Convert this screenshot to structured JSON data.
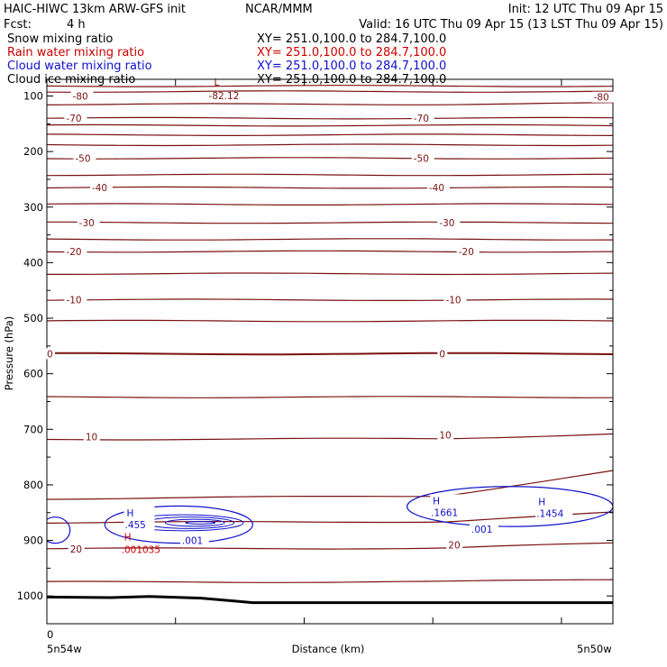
{
  "header": {
    "title_left": "HAIC-HIWC 13km ARW-GFS init",
    "title_center": "NCAR/MMM",
    "init": "Init: 12 UTC Thu 09 Apr 15",
    "fcst_label": "Fcst:",
    "fcst_value": "4 h",
    "valid": "Valid: 16 UTC Thu 09 Apr 15 (13 LST Thu 09 Apr 15)"
  },
  "fields": [
    {
      "name": "Snow mixing ratio",
      "xy": "XY= 251.0,100.0 to 284.7,100.0",
      "color": "#000000"
    },
    {
      "name": "Rain water mixing ratio",
      "xy": "XY= 251.0,100.0 to 284.7,100.0",
      "color": "#cc0000"
    },
    {
      "name": "Cloud water mixing ratio",
      "xy": "XY= 251.0,100.0 to 284.7,100.0",
      "color": "#1010cc"
    },
    {
      "name": "Cloud ice mixing ratio",
      "xy": "XY= 251.0,100.0 to 284.7,100.0",
      "color": "#000000"
    }
  ],
  "chart_data": {
    "type": "contour_cross_section",
    "ylabel": "Pressure (hPa)",
    "xlabel": "Distance (km)",
    "x_tick_label": "0",
    "x_left_label": "5n54w",
    "x_right_label": "5n50w",
    "ylim": [
      1050,
      70
    ],
    "y_ticks": [
      100,
      200,
      300,
      400,
      500,
      600,
      700,
      800,
      900,
      1000
    ],
    "xlim": [
      0,
      440
    ],
    "x_ticks": [
      0,
      100,
      200,
      300,
      400
    ],
    "colors": {
      "temperature": "#7a1010",
      "cloud_water": "#1010cc",
      "rain": "#cc0000",
      "ground": "#000000"
    },
    "temperature_isotherms": [
      {
        "p_left": 82,
        "p_right": 82
      },
      {
        "p_left": 92,
        "p_right": 92
      },
      {
        "p_left": 115,
        "p_right": 113
      },
      {
        "p_left": 140,
        "p_right": 140
      },
      {
        "p_left": 153,
        "p_right": 153
      },
      {
        "p_left": 170,
        "p_right": 170
      },
      {
        "p_left": 188,
        "p_right": 188
      },
      {
        "p_left": 212,
        "p_right": 212
      },
      {
        "p_left": 242,
        "p_right": 242
      },
      {
        "p_left": 265,
        "p_right": 265
      },
      {
        "p_left": 295,
        "p_right": 295
      },
      {
        "p_left": 328,
        "p_right": 328
      },
      {
        "p_left": 358,
        "p_right": 358
      },
      {
        "p_left": 380,
        "p_right": 380
      },
      {
        "p_left": 420,
        "p_right": 420
      },
      {
        "p_left": 467,
        "p_right": 467
      },
      {
        "p_left": 505,
        "p_right": 505
      },
      {
        "p_left": 564,
        "p_right": 564
      },
      {
        "p_left": 642,
        "p_right": 642
      },
      {
        "p_left": 718,
        "p_right": 708
      },
      {
        "p_left": 825,
        "p_right": 775
      },
      {
        "p_left": 868,
        "p_right": 850
      },
      {
        "p_left": 915,
        "p_right": 905
      },
      {
        "p_left": 975,
        "p_right": 970
      }
    ],
    "temperature_labels": [
      {
        "text": "-80",
        "x": 20,
        "p": 100
      },
      {
        "text": "-80",
        "x": 425,
        "p": 102
      },
      {
        "text": "-70",
        "x": 15,
        "p": 140
      },
      {
        "text": "-70",
        "x": 285,
        "p": 140
      },
      {
        "text": "-50",
        "x": 22,
        "p": 212
      },
      {
        "text": "-50",
        "x": 285,
        "p": 212
      },
      {
        "text": "-40",
        "x": 35,
        "p": 265
      },
      {
        "text": "-40",
        "x": 297,
        "p": 265
      },
      {
        "text": "-30",
        "x": 25,
        "p": 328
      },
      {
        "text": "-30",
        "x": 305,
        "p": 328
      },
      {
        "text": "-20",
        "x": 15,
        "p": 380
      },
      {
        "text": "-20",
        "x": 320,
        "p": 380
      },
      {
        "text": "-10",
        "x": 15,
        "p": 467
      },
      {
        "text": "-10",
        "x": 310,
        "p": 467
      },
      {
        "text": "0",
        "x": 0,
        "p": 564
      },
      {
        "text": "0",
        "x": 305,
        "p": 564
      },
      {
        "text": "10",
        "x": 30,
        "p": 713
      },
      {
        "text": "10",
        "x": 305,
        "p": 710
      },
      {
        "text": "20",
        "x": 18,
        "p": 915
      },
      {
        "text": "20",
        "x": 312,
        "p": 908
      }
    ],
    "low_marker": {
      "symbol": "L",
      "value": "-82.12",
      "x": 130,
      "p": 78
    },
    "cloud_water": {
      "contour_label": ".001",
      "regions": [
        {
          "x": [
            45,
            160
          ],
          "p": [
            838,
            905
          ]
        },
        {
          "x": [
            -5,
            18
          ],
          "p": [
            858,
            905
          ]
        },
        {
          "x": [
            280,
            440
          ],
          "p": [
            803,
            875
          ]
        }
      ],
      "maxima": [
        {
          "symbol": "H",
          "value": ".455",
          "x": 62,
          "p": 852
        },
        {
          "symbol": "H",
          "value": ".1661",
          "x": 300,
          "p": 830
        },
        {
          "symbol": "H",
          "value": ".1454",
          "x": 382,
          "p": 832
        }
      ],
      "labels": [
        {
          "text": ".001",
          "x": 105,
          "p": 900
        },
        {
          "text": ".001",
          "x": 330,
          "p": 880
        }
      ]
    },
    "rain": {
      "maxima": [
        {
          "symbol": "H",
          "value": ".001035",
          "x": 60,
          "p": 903
        }
      ]
    },
    "surface_pressure": [
      {
        "x": 0,
        "p": 1002
      },
      {
        "x": 50,
        "p": 1003
      },
      {
        "x": 80,
        "p": 1001
      },
      {
        "x": 120,
        "p": 1004
      },
      {
        "x": 160,
        "p": 1012
      },
      {
        "x": 440,
        "p": 1012
      }
    ]
  }
}
